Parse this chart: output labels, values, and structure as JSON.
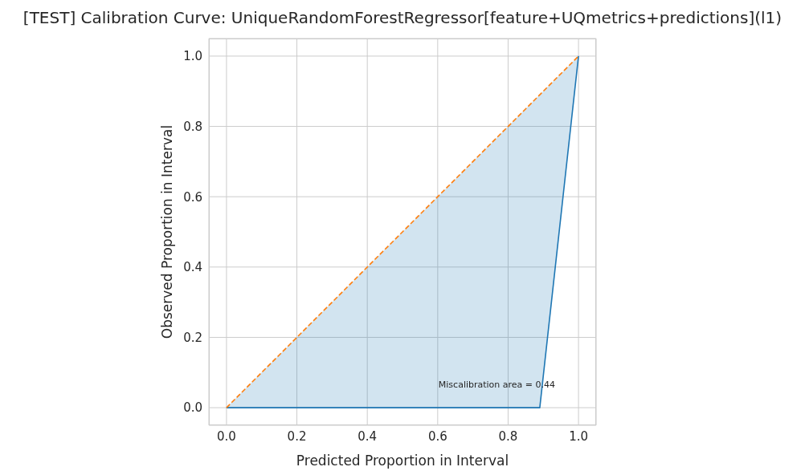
{
  "chart_data": {
    "type": "line",
    "title": "[TEST] Calibration Curve: UniqueRandomForestRegressor[feature+UQmetrics+predictions](l1)",
    "xlabel": "Predicted Proportion in Interval",
    "ylabel": "Observed Proportion in Interval",
    "series": [
      {
        "color": "#1f77b4",
        "x": [
          0,
          0.89,
          1
        ],
        "values": [
          0,
          0,
          1
        ],
        "lower": [
          0,
          0,
          1
        ],
        "upper": [
          0,
          0.89,
          1
        ],
        "line_style": "solid"
      },
      {
        "color": "#ff7f0e",
        "x": [
          0,
          1
        ],
        "values": [
          0,
          1
        ],
        "line_style": "dashed"
      }
    ],
    "xlim": [
      -0.05,
      1.05
    ],
    "ylim": [
      -0.05,
      1.05
    ],
    "xticks": [
      {
        "value": 0,
        "label": "0.0"
      },
      {
        "value": 0.2,
        "label": "0.2"
      },
      {
        "value": 0.4,
        "label": "0.4"
      },
      {
        "value": 0.6,
        "label": "0.6"
      },
      {
        "value": 0.8,
        "label": "0.8"
      },
      {
        "value": 1,
        "label": "1.0"
      }
    ],
    "yticks": [
      {
        "value": 0,
        "label": "0.0"
      },
      {
        "value": 0.2,
        "label": "0.2"
      },
      {
        "value": 0.4,
        "label": "0.4"
      },
      {
        "value": 0.6,
        "label": "0.6"
      },
      {
        "value": 0.8,
        "label": "0.8"
      },
      {
        "value": 1,
        "label": "1.0"
      }
    ],
    "annotations": [
      "Miscalibration area = 0.44"
    ],
    "grid": true,
    "legend": false,
    "marker": "none"
  }
}
